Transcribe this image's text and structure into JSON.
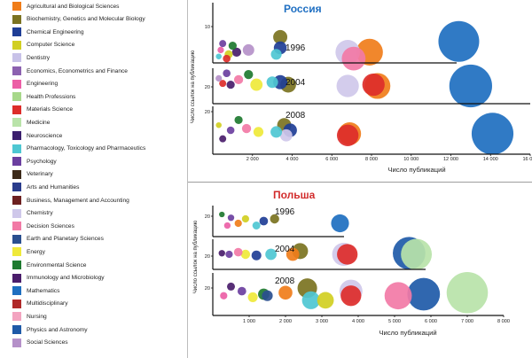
{
  "legend": [
    {
      "label": "Agricultural and Biological Sciences",
      "color": "#f07d1a"
    },
    {
      "label": "Biochemistry, Genetics and Molecular Biology",
      "color": "#7b7321"
    },
    {
      "label": "Chemical Engineering",
      "color": "#1f3e96"
    },
    {
      "label": "Computer Science",
      "color": "#d1cf22"
    },
    {
      "label": "Dentistry",
      "color": "#c8c2e8"
    },
    {
      "label": "Economics, Econometrics and Finance",
      "color": "#8c61b0"
    },
    {
      "label": "Engineering",
      "color": "#ec5fa6"
    },
    {
      "label": "Health Professions",
      "color": "#a7d88a"
    },
    {
      "label": "Materials Science",
      "color": "#dd2d2a"
    },
    {
      "label": "Medicine",
      "color": "#b9e3a9"
    },
    {
      "label": "Neuroscience",
      "color": "#3b1f6e"
    },
    {
      "label": "Pharmacology, Toxicology and Pharmaceutics",
      "color": "#4ec7d2"
    },
    {
      "label": "Psychology",
      "color": "#6b3fa0"
    },
    {
      "label": "Veterinary",
      "color": "#3c2a1a"
    },
    {
      "label": "Arts and Humanities",
      "color": "#2a3c8c"
    },
    {
      "label": "Business, Management and Accounting",
      "color": "#6d2020"
    },
    {
      "label": "Chemistry",
      "color": "#cfc8ea"
    },
    {
      "label": "Decision Sciences",
      "color": "#f27aa6"
    },
    {
      "label": "Earth and Planetary Sciences",
      "color": "#2a4f8f"
    },
    {
      "label": "Energy",
      "color": "#efe93a"
    },
    {
      "label": "Environmental Science",
      "color": "#1e7a30"
    },
    {
      "label": "Immunology and Microbiology",
      "color": "#4a1d6b"
    },
    {
      "label": "Mathematics",
      "color": "#1e6fc0"
    },
    {
      "label": "Multidisciplinary",
      "color": "#b02a2a"
    },
    {
      "label": "Nursing",
      "color": "#f3a4c0"
    },
    {
      "label": "Physics and Astronomy",
      "color": "#1e5aa8"
    },
    {
      "label": "Social Sciences",
      "color": "#b591c9"
    }
  ],
  "chart_data": [
    {
      "type": "scatter",
      "title": "Россия",
      "title_color": "#1f6fc2",
      "xlabel": "Число публикаций",
      "ylabel": "Число ссылок на публикацию",
      "xlim": [
        0,
        16000
      ],
      "xticks": [
        "2 000",
        "4 000",
        "6 000",
        "8 000",
        "10 000",
        "12 000",
        "14 000",
        "16 000"
      ],
      "panels": [
        {
          "year": "1996",
          "ytick": "10",
          "bubbles": [
            {
              "x": 12400,
              "y": 10,
              "s": 10000,
              "color": "#1e6fc0"
            },
            {
              "x": 7900,
              "y": 5,
              "s": 4300,
              "color": "#f07d1a"
            },
            {
              "x": 6800,
              "y": 5,
              "s": 3600,
              "color": "#cfc8ea"
            },
            {
              "x": 7100,
              "y": 2,
              "s": 3400,
              "color": "#f27aa6"
            },
            {
              "x": 3400,
              "y": 12,
              "s": 1200,
              "color": "#7b7321"
            },
            {
              "x": 3400,
              "y": 7,
              "s": 1000,
              "color": "#1f3e96"
            },
            {
              "x": 3200,
              "y": 4,
              "s": 700,
              "color": "#4ec7d2"
            },
            {
              "x": 1800,
              "y": 6,
              "s": 800,
              "color": "#b591c9"
            },
            {
              "x": 1200,
              "y": 5,
              "s": 500,
              "color": "#4a1d6b"
            },
            {
              "x": 1000,
              "y": 8,
              "s": 400,
              "color": "#1e7a30"
            },
            {
              "x": 800,
              "y": 4,
              "s": 400,
              "color": "#d1cf22"
            },
            {
              "x": 700,
              "y": 2,
              "s": 350,
              "color": "#dd2d2a"
            },
            {
              "x": 500,
              "y": 9,
              "s": 300,
              "color": "#6b3fa0"
            },
            {
              "x": 400,
              "y": 6,
              "s": 250,
              "color": "#ec5fa6"
            },
            {
              "x": 300,
              "y": 3,
              "s": 200,
              "color": "#4ec7d2"
            }
          ]
        },
        {
          "year": "2004",
          "ytick": "20",
          "bubbles": [
            {
              "x": 13000,
              "y": 14,
              "s": 11000,
              "color": "#1e6fc0"
            },
            {
              "x": 8300,
              "y": 14,
              "s": 4000,
              "color": "#f07d1a"
            },
            {
              "x": 8100,
              "y": 15,
              "s": 3000,
              "color": "#dd2d2a"
            },
            {
              "x": 6800,
              "y": 14,
              "s": 3000,
              "color": "#cfc8ea"
            },
            {
              "x": 3800,
              "y": 15,
              "s": 1500,
              "color": "#7b7321"
            },
            {
              "x": 3400,
              "y": 17,
              "s": 1200,
              "color": "#1f3e96"
            },
            {
              "x": 3000,
              "y": 17,
              "s": 800,
              "color": "#4ec7d2"
            },
            {
              "x": 2200,
              "y": 15,
              "s": 900,
              "color": "#efe93a"
            },
            {
              "x": 1800,
              "y": 23,
              "s": 500,
              "color": "#1e7a30"
            },
            {
              "x": 1300,
              "y": 19,
              "s": 500,
              "color": "#f27aa6"
            },
            {
              "x": 900,
              "y": 15,
              "s": 400,
              "color": "#4a1d6b"
            },
            {
              "x": 700,
              "y": 24,
              "s": 350,
              "color": "#6b3fa0"
            },
            {
              "x": 500,
              "y": 16,
              "s": 300,
              "color": "#dd2d2a"
            },
            {
              "x": 300,
              "y": 20,
              "s": 250,
              "color": "#b591c9"
            }
          ]
        },
        {
          "year": "2008",
          "ytick": "20",
          "bubbles": [
            {
              "x": 14100,
              "y": 12,
              "s": 10500,
              "color": "#1e6fc0"
            },
            {
              "x": 6900,
              "y": 12,
              "s": 3100,
              "color": "#f07d1a"
            },
            {
              "x": 6800,
              "y": 11,
              "s": 2800,
              "color": "#dd2d2a"
            },
            {
              "x": 3600,
              "y": 17,
              "s": 1200,
              "color": "#7b7321"
            },
            {
              "x": 3900,
              "y": 14,
              "s": 1100,
              "color": "#1f3e96"
            },
            {
              "x": 3700,
              "y": 11,
              "s": 900,
              "color": "#cfc8ea"
            },
            {
              "x": 3200,
              "y": 13,
              "s": 800,
              "color": "#4ec7d2"
            },
            {
              "x": 2300,
              "y": 13,
              "s": 600,
              "color": "#efe93a"
            },
            {
              "x": 1700,
              "y": 15,
              "s": 500,
              "color": "#f27aa6"
            },
            {
              "x": 1300,
              "y": 20,
              "s": 400,
              "color": "#1e7a30"
            },
            {
              "x": 900,
              "y": 14,
              "s": 350,
              "color": "#6b3fa0"
            },
            {
              "x": 500,
              "y": 9,
              "s": 300,
              "color": "#4a1d6b"
            },
            {
              "x": 300,
              "y": 17,
              "s": 200,
              "color": "#d1cf22"
            }
          ]
        }
      ]
    },
    {
      "type": "scatter",
      "title": "Польша",
      "title_color": "#d22b2b",
      "xlabel": "Число публикаций",
      "ylabel": "Число ссылок на публикацию",
      "xlim": [
        0,
        8000
      ],
      "xticks": [
        "1 000",
        "2 000",
        "3 000",
        "4 000",
        "5 000",
        "6 000",
        "7 000",
        "8 000"
      ],
      "panels": [
        {
          "year": "1996",
          "ytick": "20",
          "bubbles": [
            {
              "x": 3500,
              "y": 12,
              "s": 1500,
              "color": "#1e6fc0"
            },
            {
              "x": 1700,
              "y": 16,
              "s": 400,
              "color": "#7b7321"
            },
            {
              "x": 1400,
              "y": 14,
              "s": 350,
              "color": "#1f3e96"
            },
            {
              "x": 1200,
              "y": 10,
              "s": 300,
              "color": "#4ec7d2"
            },
            {
              "x": 900,
              "y": 16,
              "s": 250,
              "color": "#d1cf22"
            },
            {
              "x": 700,
              "y": 12,
              "s": 250,
              "color": "#f07d1a"
            },
            {
              "x": 500,
              "y": 17,
              "s": 200,
              "color": "#6b3fa0"
            },
            {
              "x": 400,
              "y": 10,
              "s": 200,
              "color": "#ec5fa6"
            },
            {
              "x": 250,
              "y": 20,
              "s": 150,
              "color": "#1e7a30"
            }
          ]
        },
        {
          "year": "2004",
          "ytick": "20",
          "bubbles": [
            {
              "x": 5400,
              "y": 15,
              "s": 5000,
              "color": "#1e5aa8"
            },
            {
              "x": 5600,
              "y": 14,
              "s": 4500,
              "color": "#b9e3a9"
            },
            {
              "x": 3600,
              "y": 14,
              "s": 2500,
              "color": "#cfc8ea"
            },
            {
              "x": 3700,
              "y": 14,
              "s": 2000,
              "color": "#dd2d2a"
            },
            {
              "x": 2400,
              "y": 17,
              "s": 1200,
              "color": "#7b7321"
            },
            {
              "x": 2200,
              "y": 14,
              "s": 800,
              "color": "#f07d1a"
            },
            {
              "x": 1600,
              "y": 14,
              "s": 600,
              "color": "#4ec7d2"
            },
            {
              "x": 1200,
              "y": 13,
              "s": 450,
              "color": "#1f3e96"
            },
            {
              "x": 900,
              "y": 14,
              "s": 400,
              "color": "#efe93a"
            },
            {
              "x": 700,
              "y": 16,
              "s": 350,
              "color": "#f27aa6"
            },
            {
              "x": 450,
              "y": 14,
              "s": 250,
              "color": "#6b3fa0"
            },
            {
              "x": 250,
              "y": 15,
              "s": 200,
              "color": "#4a1d6b"
            }
          ]
        },
        {
          "year": "2008",
          "ytick": "20",
          "bubbles": [
            {
              "x": 7000,
              "y": 15,
              "s": 8000,
              "color": "#b9e3a9"
            },
            {
              "x": 5800,
              "y": 14,
              "s": 5000,
              "color": "#1e5aa8"
            },
            {
              "x": 5100,
              "y": 13,
              "s": 3500,
              "color": "#f27aa6"
            },
            {
              "x": 3800,
              "y": 16,
              "s": 2500,
              "color": "#cfc8ea"
            },
            {
              "x": 3800,
              "y": 13,
              "s": 2000,
              "color": "#dd2d2a"
            },
            {
              "x": 2600,
              "y": 18,
              "s": 1800,
              "color": "#7b7321"
            },
            {
              "x": 2700,
              "y": 10,
              "s": 1500,
              "color": "#4ec7d2"
            },
            {
              "x": 3100,
              "y": 10,
              "s": 1300,
              "color": "#d1cf22"
            },
            {
              "x": 2000,
              "y": 15,
              "s": 900,
              "color": "#f07d1a"
            },
            {
              "x": 1400,
              "y": 14,
              "s": 600,
              "color": "#1e7a30"
            },
            {
              "x": 1500,
              "y": 13,
              "s": 550,
              "color": "#2a4f8f"
            },
            {
              "x": 1100,
              "y": 12,
              "s": 450,
              "color": "#efe93a"
            },
            {
              "x": 800,
              "y": 16,
              "s": 350,
              "color": "#6b3fa0"
            },
            {
              "x": 500,
              "y": 19,
              "s": 300,
              "color": "#4a1d6b"
            },
            {
              "x": 300,
              "y": 13,
              "s": 250,
              "color": "#ec5fa6"
            }
          ]
        }
      ]
    }
  ]
}
